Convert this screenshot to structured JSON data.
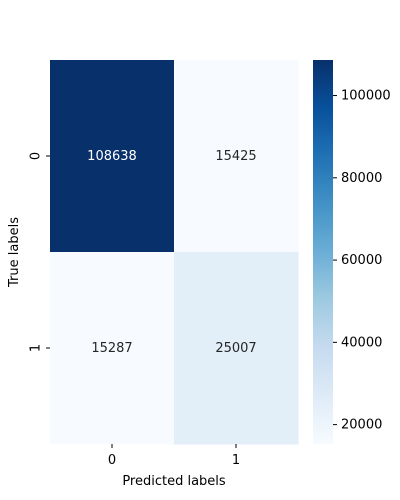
{
  "chart_data": {
    "type": "heatmap",
    "title": "",
    "xlabel": "Predicted labels",
    "ylabel": "True labels",
    "x_categories": [
      "0",
      "1"
    ],
    "y_categories": [
      "0",
      "1"
    ],
    "values": [
      [
        108638,
        15425
      ],
      [
        15287,
        25007
      ]
    ],
    "cell_labels": [
      [
        "108638",
        "15425"
      ],
      [
        "15287",
        "25007"
      ]
    ],
    "colormap": "Blues",
    "color_range": [
      15287,
      108638
    ],
    "colorbar": {
      "ticks": [
        20000,
        40000,
        60000,
        80000,
        100000
      ],
      "tick_labels": [
        "20000",
        "40000",
        "60000",
        "80000",
        "100000"
      ]
    },
    "colors": {
      "low": "#f7fbff",
      "high": "#08306b",
      "annotation_on_dark": "#ffffff",
      "annotation_on_light": "#262626"
    }
  }
}
